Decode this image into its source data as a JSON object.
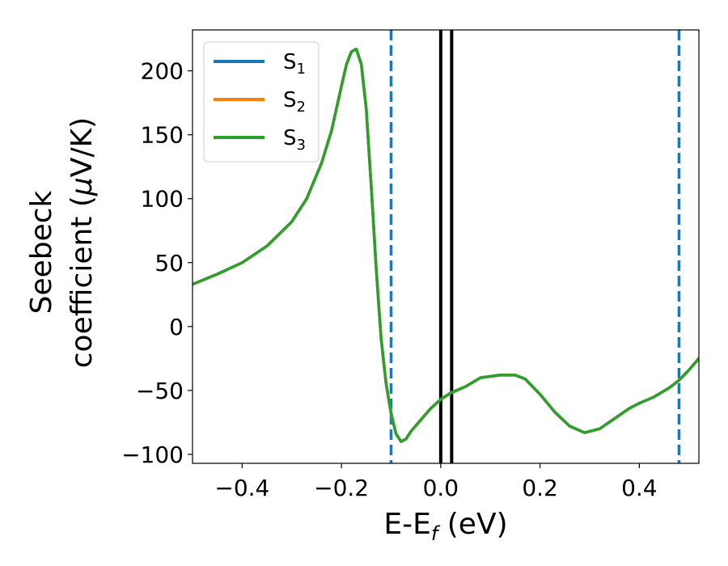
{
  "chart_data": {
    "type": "line",
    "xlabel": {
      "main": "E-E",
      "sub": "f",
      "tail": " (eV)"
    },
    "ylabel": {
      "line1": "Seebeck",
      "line2": "coefficient  (",
      "mu": "μ",
      "tail": "V/K)"
    },
    "xlim": [
      -0.5,
      0.52
    ],
    "ylim": [
      -107,
      232
    ],
    "xticks": [
      -0.4,
      -0.2,
      0.0,
      0.2,
      0.4
    ],
    "xtick_labels": [
      "−0.4",
      "−0.2",
      "0.0",
      "0.2",
      "0.4"
    ],
    "yticks": [
      -100,
      -50,
      0,
      50,
      100,
      150,
      200
    ],
    "ytick_labels": [
      "−100",
      "−50",
      "0",
      "50",
      "100",
      "150",
      "200"
    ],
    "grid": false,
    "legend_position": "top-left",
    "vlines": [
      {
        "x": -0.1,
        "style": "dashed",
        "color": "#1f77b4"
      },
      {
        "x": 0.48,
        "style": "dashed",
        "color": "#1f77b4"
      },
      {
        "x": 0.0,
        "style": "solid",
        "color": "#000000"
      },
      {
        "x": 0.022,
        "style": "solid",
        "color": "#000000"
      }
    ],
    "series": [
      {
        "name": "S",
        "sub": "1",
        "color": "#1f77b4",
        "x": [
          -0.5,
          -0.45,
          -0.4,
          -0.35,
          -0.3,
          -0.27,
          -0.24,
          -0.22,
          -0.2,
          -0.19,
          -0.18,
          -0.17,
          -0.16,
          -0.15,
          -0.14,
          -0.13,
          -0.12,
          -0.11,
          -0.1,
          -0.09,
          -0.08,
          -0.07,
          -0.06,
          -0.04,
          -0.02,
          0.0,
          0.02,
          0.05,
          0.08,
          0.1,
          0.12,
          0.15,
          0.17,
          0.2,
          0.23,
          0.26,
          0.29,
          0.32,
          0.35,
          0.38,
          0.4,
          0.43,
          0.46,
          0.48,
          0.5,
          0.52
        ],
        "y": [
          33,
          41,
          50,
          63,
          82,
          100,
          128,
          153,
          188,
          205,
          215,
          217,
          205,
          170,
          110,
          45,
          -10,
          -45,
          -68,
          -84,
          -90,
          -88,
          -82,
          -73,
          -64,
          -57,
          -52,
          -47,
          -40,
          -39,
          -38,
          -38,
          -41,
          -53,
          -67,
          -78,
          -83,
          -80,
          -72,
          -64,
          -60,
          -55,
          -48,
          -42,
          -34,
          -25
        ]
      },
      {
        "name": "S",
        "sub": "2",
        "color": "#ff7f0e",
        "x": [
          -0.5,
          -0.45,
          -0.4,
          -0.35,
          -0.3,
          -0.27,
          -0.24,
          -0.22,
          -0.2,
          -0.19,
          -0.18,
          -0.17,
          -0.16,
          -0.15,
          -0.14,
          -0.13,
          -0.12,
          -0.11,
          -0.1,
          -0.09,
          -0.08,
          -0.07,
          -0.06,
          -0.04,
          -0.02,
          0.0,
          0.02,
          0.05,
          0.08,
          0.1,
          0.12,
          0.15,
          0.17,
          0.2,
          0.23,
          0.26,
          0.29,
          0.32,
          0.35,
          0.38,
          0.4,
          0.43,
          0.46,
          0.48,
          0.5,
          0.52
        ],
        "y": [
          33,
          41,
          50,
          63,
          82,
          100,
          128,
          153,
          188,
          205,
          215,
          217,
          205,
          170,
          110,
          45,
          -10,
          -45,
          -68,
          -84,
          -90,
          -88,
          -82,
          -73,
          -64,
          -57,
          -52,
          -47,
          -40,
          -39,
          -38,
          -38,
          -41,
          -53,
          -67,
          -78,
          -83,
          -80,
          -72,
          -64,
          -60,
          -55,
          -48,
          -42,
          -34,
          -25
        ]
      },
      {
        "name": "S",
        "sub": "3",
        "color": "#2ca02c",
        "x": [
          -0.5,
          -0.45,
          -0.4,
          -0.35,
          -0.3,
          -0.27,
          -0.24,
          -0.22,
          -0.2,
          -0.19,
          -0.18,
          -0.17,
          -0.16,
          -0.15,
          -0.14,
          -0.13,
          -0.12,
          -0.11,
          -0.1,
          -0.09,
          -0.08,
          -0.07,
          -0.06,
          -0.04,
          -0.02,
          0.0,
          0.02,
          0.05,
          0.08,
          0.1,
          0.12,
          0.15,
          0.17,
          0.2,
          0.23,
          0.26,
          0.29,
          0.32,
          0.35,
          0.38,
          0.4,
          0.43,
          0.46,
          0.48,
          0.5,
          0.52
        ],
        "y": [
          33,
          41,
          50,
          63,
          82,
          100,
          128,
          153,
          188,
          205,
          215,
          217,
          205,
          170,
          110,
          45,
          -10,
          -45,
          -68,
          -84,
          -90,
          -88,
          -82,
          -73,
          -64,
          -57,
          -52,
          -47,
          -40,
          -39,
          -38,
          -38,
          -41,
          -53,
          -67,
          -78,
          -83,
          -80,
          -72,
          -64,
          -60,
          -55,
          -48,
          -42,
          -34,
          -25
        ]
      }
    ]
  }
}
